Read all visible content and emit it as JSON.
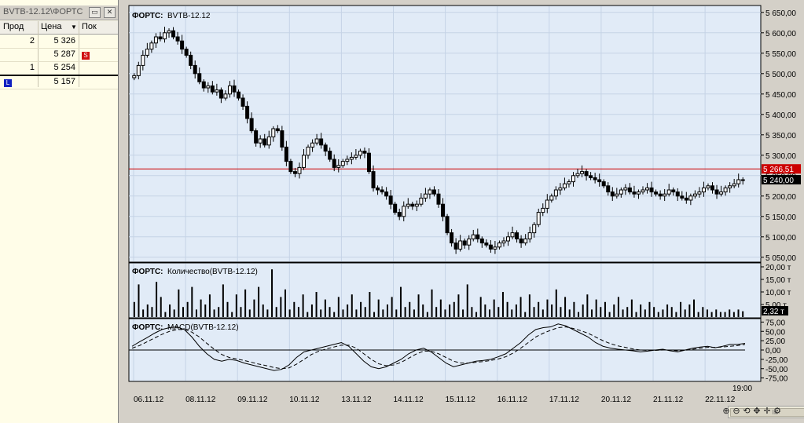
{
  "orderbook": {
    "title": "BVTB-12.12\\ФОРТС",
    "min_icon": "minimize-icon",
    "close_icon": "close-icon",
    "columns": {
      "sell": "Прод",
      "price": "Цена",
      "buy": "Пок"
    },
    "rows": [
      {
        "sell": "2",
        "price": "5 326",
        "buy": "",
        "badge": ""
      },
      {
        "sell": "",
        "price": "5 287",
        "buy": "",
        "badge": "S"
      },
      {
        "sell": "1",
        "price": "5 254",
        "buy": "",
        "badge": ""
      },
      {
        "sell": "",
        "price": "5 157",
        "buy": "",
        "badge": "",
        "left_badge": "L"
      }
    ]
  },
  "chart": {
    "price_title_bold": "ФОРТС:",
    "price_title": "BVTB-12.12",
    "volume_title_bold": "ФОРТС:",
    "volume_title": "Количество(BVTB-12.12)",
    "macd_title_bold": "ФОРТС:",
    "macd_title": "MACD(BVTB-12.12)",
    "current_price_label": "5 240,00",
    "hline_label": "5 266,51",
    "volume_label": "2,32 т",
    "time_label": "19:00",
    "scroll_label": "III",
    "colors": {
      "background": "#e1ebf7",
      "hline": "#cc0000",
      "candle": "#000000"
    }
  },
  "chart_data": [
    {
      "type": "candlestick",
      "title": "BVTB-12.12",
      "y_ticks": [
        "5 650,00",
        "5 600,00",
        "5 550,00",
        "5 500,00",
        "5 450,00",
        "5 400,00",
        "5 350,00",
        "5 300,00",
        "5 250,00",
        "5 200,00",
        "5 150,00",
        "5 100,00",
        "5 050,00"
      ],
      "ylim": [
        5040,
        5665
      ],
      "x_labels": [
        "06.11.12",
        "08.11.12",
        "09.11.12",
        "10.11.12",
        "13.11.12",
        "14.11.12",
        "15.11.12",
        "16.11.12",
        "17.11.12",
        "20.11.12",
        "21.11.12",
        "22.11.12"
      ],
      "close_series": [
        5495,
        5520,
        5545,
        5560,
        5575,
        5590,
        5585,
        5600,
        5605,
        5590,
        5580,
        5560,
        5545,
        5520,
        5500,
        5480,
        5465,
        5470,
        5455,
        5460,
        5440,
        5450,
        5470,
        5455,
        5440,
        5420,
        5390,
        5360,
        5330,
        5340,
        5325,
        5345,
        5365,
        5360,
        5320,
        5285,
        5260,
        5255,
        5270,
        5300,
        5320,
        5330,
        5340,
        5325,
        5310,
        5290,
        5270,
        5275,
        5285,
        5290,
        5295,
        5300,
        5310,
        5305,
        5260,
        5220,
        5215,
        5210,
        5200,
        5180,
        5160,
        5150,
        5175,
        5180,
        5175,
        5180,
        5195,
        5205,
        5215,
        5205,
        5180,
        5150,
        5110,
        5085,
        5070,
        5090,
        5080,
        5095,
        5105,
        5095,
        5085,
        5080,
        5070,
        5075,
        5085,
        5090,
        5100,
        5110,
        5095,
        5085,
        5095,
        5110,
        5130,
        5160,
        5170,
        5190,
        5200,
        5215,
        5220,
        5230,
        5235,
        5250,
        5255,
        5260,
        5250,
        5245,
        5240,
        5235,
        5225,
        5210,
        5200,
        5205,
        5215,
        5220,
        5210,
        5205,
        5210,
        5215,
        5220,
        5210,
        5205,
        5200,
        5205,
        5215,
        5210,
        5200,
        5195,
        5190,
        5200,
        5205,
        5210,
        5220,
        5225,
        5215,
        5205,
        5210,
        5220,
        5225,
        5230,
        5240,
        5240
      ],
      "reference_line": 5266.51,
      "last_price": 5240.0
    },
    {
      "type": "bar",
      "title": "Количество(BVTB-12.12)",
      "y_ticks": [
        "20,00 т",
        "15,00 т",
        "10,00 т",
        "5,00 т"
      ],
      "ylim": [
        0,
        20
      ],
      "unit": "т",
      "values": [
        6,
        13,
        3,
        5,
        4,
        14,
        8,
        2,
        5,
        3,
        11,
        4,
        6,
        12,
        3,
        7,
        5,
        9,
        3,
        4,
        13,
        6,
        2,
        9,
        4,
        11,
        3,
        7,
        12,
        5,
        3,
        19,
        4,
        8,
        11,
        3,
        6,
        4,
        9,
        2,
        5,
        10,
        3,
        7,
        4,
        2,
        8,
        3,
        5,
        9,
        3,
        6,
        4,
        10,
        2,
        7,
        3,
        5,
        8,
        3,
        12,
        4,
        6,
        3,
        9,
        5,
        2,
        11,
        4,
        7,
        3,
        5,
        6,
        9,
        3,
        13,
        4,
        2,
        8,
        5,
        3,
        7,
        4,
        10,
        6,
        3,
        5,
        8,
        2,
        9,
        4,
        6,
        3,
        7,
        5,
        11,
        4,
        8,
        3,
        6,
        2,
        5,
        9,
        3,
        7,
        4,
        6,
        2,
        5,
        8,
        3,
        4,
        7,
        2,
        5,
        3,
        6,
        4,
        2,
        3,
        5,
        4,
        2,
        6,
        3,
        5,
        7,
        2,
        4,
        3,
        2,
        3,
        2,
        2,
        3,
        2,
        3,
        2.32
      ],
      "last_value": 2.32
    },
    {
      "type": "line",
      "title": "MACD(BVTB-12.12)",
      "y_ticks": [
        "75,00",
        "50,00",
        "25,00",
        "0,00",
        "-25,00",
        "-50,00",
        "-75,00"
      ],
      "ylim": [
        -80,
        80
      ],
      "series": [
        {
          "values": [
            10,
            22,
            33,
            45,
            55,
            60,
            62,
            55,
            35,
            10,
            -10,
            -25,
            -30,
            -25,
            -28,
            -35,
            -40,
            -45,
            -50,
            -55,
            -52,
            -40,
            -20,
            -5,
            0,
            5,
            10,
            15,
            20,
            10,
            -10,
            -30,
            -45,
            -50,
            -45,
            -35,
            -25,
            -10,
            0,
            5,
            -5,
            -20,
            -35,
            -45,
            -40,
            -35,
            -30,
            -28,
            -25,
            -18,
            -10,
            5,
            20,
            40,
            55,
            60,
            62,
            70,
            65,
            55,
            45,
            35,
            20,
            10,
            5,
            2,
            0,
            -2,
            -5,
            -3,
            0,
            2,
            -2,
            -5,
            0,
            5,
            8,
            10,
            6,
            10,
            15,
            15,
            18
          ]
        },
        {
          "values": [
            5,
            12,
            22,
            32,
            42,
            50,
            55,
            55,
            48,
            35,
            18,
            2,
            -12,
            -20,
            -24,
            -28,
            -33,
            -38,
            -42,
            -47,
            -50,
            -48,
            -38,
            -25,
            -12,
            -3,
            3,
            8,
            13,
            13,
            5,
            -10,
            -25,
            -37,
            -42,
            -40,
            -33,
            -22,
            -11,
            -3,
            -3,
            -10,
            -20,
            -30,
            -35,
            -35,
            -33,
            -31,
            -28,
            -24,
            -18,
            -8,
            5,
            20,
            35,
            45,
            53,
            60,
            62,
            58,
            52,
            45,
            35,
            25,
            17,
            11,
            7,
            3,
            0,
            -1,
            -1,
            0,
            0,
            -2,
            -1,
            2,
            5,
            7,
            7,
            8,
            10,
            12,
            15
          ]
        }
      ]
    }
  ]
}
